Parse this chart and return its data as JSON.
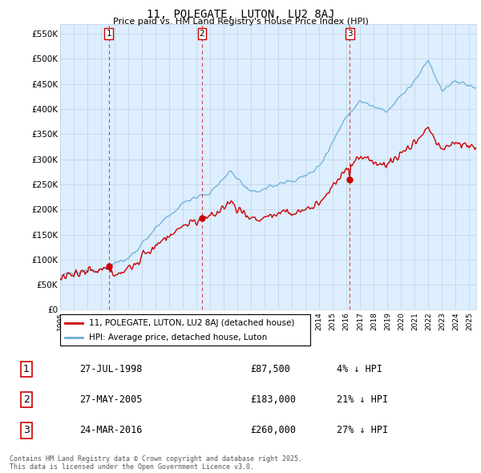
{
  "title": "11, POLEGATE, LUTON, LU2 8AJ",
  "subtitle": "Price paid vs. HM Land Registry's House Price Index (HPI)",
  "hpi_color": "#6baed6",
  "property_color": "#cc0000",
  "vline_color": "#cc0000",
  "bg_plot_color": "#ddeeff",
  "ylim": [
    0,
    570000
  ],
  "yticks": [
    0,
    50000,
    100000,
    150000,
    200000,
    250000,
    300000,
    350000,
    400000,
    450000,
    500000,
    550000
  ],
  "ytick_labels": [
    "£0",
    "£50K",
    "£100K",
    "£150K",
    "£200K",
    "£250K",
    "£300K",
    "£350K",
    "£400K",
    "£450K",
    "£500K",
    "£550K"
  ],
  "transactions": [
    {
      "date_num": 1998.57,
      "price": 87500,
      "label": "1"
    },
    {
      "date_num": 2005.4,
      "price": 183000,
      "label": "2"
    },
    {
      "date_num": 2016.23,
      "price": 260000,
      "label": "3"
    }
  ],
  "legend_property": "11, POLEGATE, LUTON, LU2 8AJ (detached house)",
  "legend_hpi": "HPI: Average price, detached house, Luton",
  "table_rows": [
    {
      "num": "1",
      "date": "27-JUL-1998",
      "price": "£87,500",
      "pct": "4% ↓ HPI"
    },
    {
      "num": "2",
      "date": "27-MAY-2005",
      "price": "£183,000",
      "pct": "21% ↓ HPI"
    },
    {
      "num": "3",
      "date": "24-MAR-2016",
      "price": "£260,000",
      "pct": "27% ↓ HPI"
    }
  ],
  "footnote": "Contains HM Land Registry data © Crown copyright and database right 2025.\nThis data is licensed under the Open Government Licence v3.0.",
  "background_color": "#ffffff",
  "grid_color": "#c0d0e0"
}
